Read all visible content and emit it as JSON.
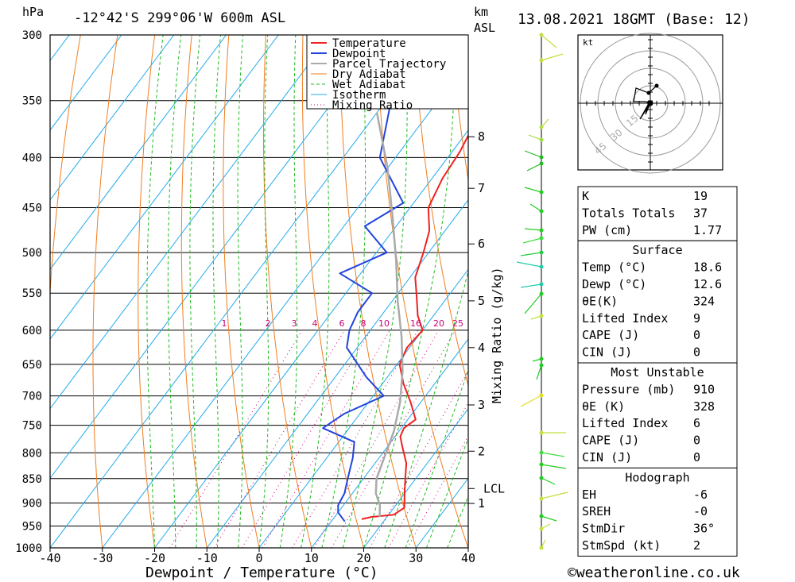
{
  "header": {
    "pressure_unit": "hPa",
    "location": "-12°42'S 299°06'W 600m ASL",
    "height_unit_km": "km",
    "height_unit_asl": "ASL",
    "datetime": "13.08.2021 18GMT (Base: 12)"
  },
  "footer": {
    "xlabel": "Dewpoint / Temperature (°C)",
    "copyright": "©weatheronline.co.uk",
    "mixing_ratio_label": "Mixing Ratio (g/kg)"
  },
  "colors": {
    "temperature": "#ee2222",
    "dewpoint": "#2244dd",
    "parcel": "#aaaaaa",
    "dry_adiabat": "#f07e20",
    "wet_adiabat": "#22bb22",
    "isotherm": "#22aaee",
    "mixing_ratio": "#cc0077"
  },
  "chart_data": {
    "type": "line",
    "title": "-12°42'S 299°06'W 600m ASL",
    "xlabel": "Dewpoint / Temperature (°C)",
    "ylabel": "hPa",
    "xlim": [
      -40,
      40
    ],
    "ylim": [
      1000,
      300
    ],
    "x_ticks": [
      -40,
      -30,
      -20,
      -10,
      0,
      10,
      20,
      30,
      40
    ],
    "pressure_levels": [
      300,
      350,
      400,
      450,
      500,
      550,
      600,
      650,
      700,
      750,
      800,
      850,
      900,
      950,
      1000
    ],
    "height_ticks": [
      {
        "label": "8",
        "p": 381
      },
      {
        "label": "7",
        "p": 430
      },
      {
        "label": "6",
        "p": 490
      },
      {
        "label": "5",
        "p": 560
      },
      {
        "label": "4",
        "p": 625
      },
      {
        "label": "3",
        "p": 715
      },
      {
        "label": "2",
        "p": 797
      },
      {
        "label": "1",
        "p": 901
      },
      {
        "label": "LCL",
        "p": 870
      }
    ],
    "mixing_ratio_labels": [
      "1",
      "2",
      "3",
      "4",
      "6",
      "8",
      "10",
      "16",
      "20",
      "25"
    ],
    "mixing_ratio_values": [
      1,
      2,
      3,
      4,
      6,
      8,
      10,
      16,
      20,
      25
    ],
    "legend": [
      "Temperature",
      "Dewpoint",
      "Parcel Trajectory",
      "Dry Adiabat",
      "Wet Adiabat",
      "Isotherm",
      "Mixing Ratio"
    ],
    "legend_position": "top-center",
    "series": [
      {
        "name": "Temperature",
        "points": [
          [
            -25.5,
            300
          ],
          [
            -21.5,
            330
          ],
          [
            -20,
            365
          ],
          [
            -18.5,
            395
          ],
          [
            -18,
            420
          ],
          [
            -16.5,
            450
          ],
          [
            -13,
            475
          ],
          [
            -11,
            500
          ],
          [
            -9,
            530
          ],
          [
            -6.5,
            550
          ],
          [
            -3,
            580
          ],
          [
            0,
            600
          ],
          [
            -0.5,
            625
          ],
          [
            0.5,
            650
          ],
          [
            4,
            680
          ],
          [
            8,
            710
          ],
          [
            11.5,
            740
          ],
          [
            10.5,
            755
          ],
          [
            11,
            770
          ],
          [
            13,
            790
          ],
          [
            16,
            820
          ],
          [
            18,
            850
          ],
          [
            20,
            880
          ],
          [
            22,
            910
          ],
          [
            21,
            925
          ],
          [
            17,
            930
          ],
          [
            15.5,
            935
          ]
        ]
      },
      {
        "name": "Dewpoint",
        "points": [
          [
            -39,
            300
          ],
          [
            -39,
            350
          ],
          [
            -33,
            400
          ],
          [
            -22,
            445
          ],
          [
            -26,
            470
          ],
          [
            -18,
            500
          ],
          [
            -24,
            525
          ],
          [
            -15,
            550
          ],
          [
            -15,
            575
          ],
          [
            -14,
            600
          ],
          [
            -12,
            625
          ],
          [
            -4,
            670
          ],
          [
            2,
            700
          ],
          [
            -3,
            730
          ],
          [
            -5,
            755
          ],
          [
            3,
            780
          ],
          [
            5,
            810
          ],
          [
            7,
            850
          ],
          [
            8.5,
            880
          ],
          [
            9,
            905
          ],
          [
            10,
            920
          ],
          [
            12.6,
            940
          ]
        ]
      },
      {
        "name": "Parcel Trajectory",
        "points": [
          [
            -40,
            360
          ],
          [
            -30,
            410
          ],
          [
            -22,
            460
          ],
          [
            -15,
            510
          ],
          [
            -9,
            560
          ],
          [
            -3,
            610
          ],
          [
            2,
            660
          ],
          [
            6,
            710
          ],
          [
            9,
            760
          ],
          [
            11,
            810
          ],
          [
            12.5,
            850
          ],
          [
            14.5,
            880
          ],
          [
            17,
            905
          ],
          [
            18.6,
            930
          ]
        ]
      }
    ],
    "indices": [
      {
        "label": "K",
        "value": "19"
      },
      {
        "label": "Totals Totals",
        "value": "37"
      },
      {
        "label": "PW (cm)",
        "value": "1.77"
      }
    ],
    "surface": {
      "title": "Surface",
      "rows": [
        {
          "label": "Temp (°C)",
          "value": "18.6"
        },
        {
          "label": "Dewp (°C)",
          "value": "12.6"
        },
        {
          "label": "θE(K)",
          "value": "324"
        },
        {
          "label": "Lifted Index",
          "value": "9"
        },
        {
          "label": "CAPE (J)",
          "value": "0"
        },
        {
          "label": "CIN (J)",
          "value": "0"
        }
      ]
    },
    "most_unstable": {
      "title": "Most Unstable",
      "rows": [
        {
          "label": "Pressure (mb)",
          "value": "910"
        },
        {
          "label": "θE (K)",
          "value": "328"
        },
        {
          "label": "Lifted Index",
          "value": "6"
        },
        {
          "label": "CAPE (J)",
          "value": "0"
        },
        {
          "label": "CIN (J)",
          "value": "0"
        }
      ]
    },
    "hodograph": {
      "title": "Hodograph",
      "unit_label": "kt",
      "ring_labels": [
        "15",
        "30",
        "45"
      ],
      "rows": [
        {
          "label": "EH",
          "value": "-6"
        },
        {
          "label": "SREH",
          "value": "-0"
        },
        {
          "label": "StmDir",
          "value": "36°"
        },
        {
          "label": "StmSpd (kt)",
          "value": "2"
        }
      ]
    }
  }
}
